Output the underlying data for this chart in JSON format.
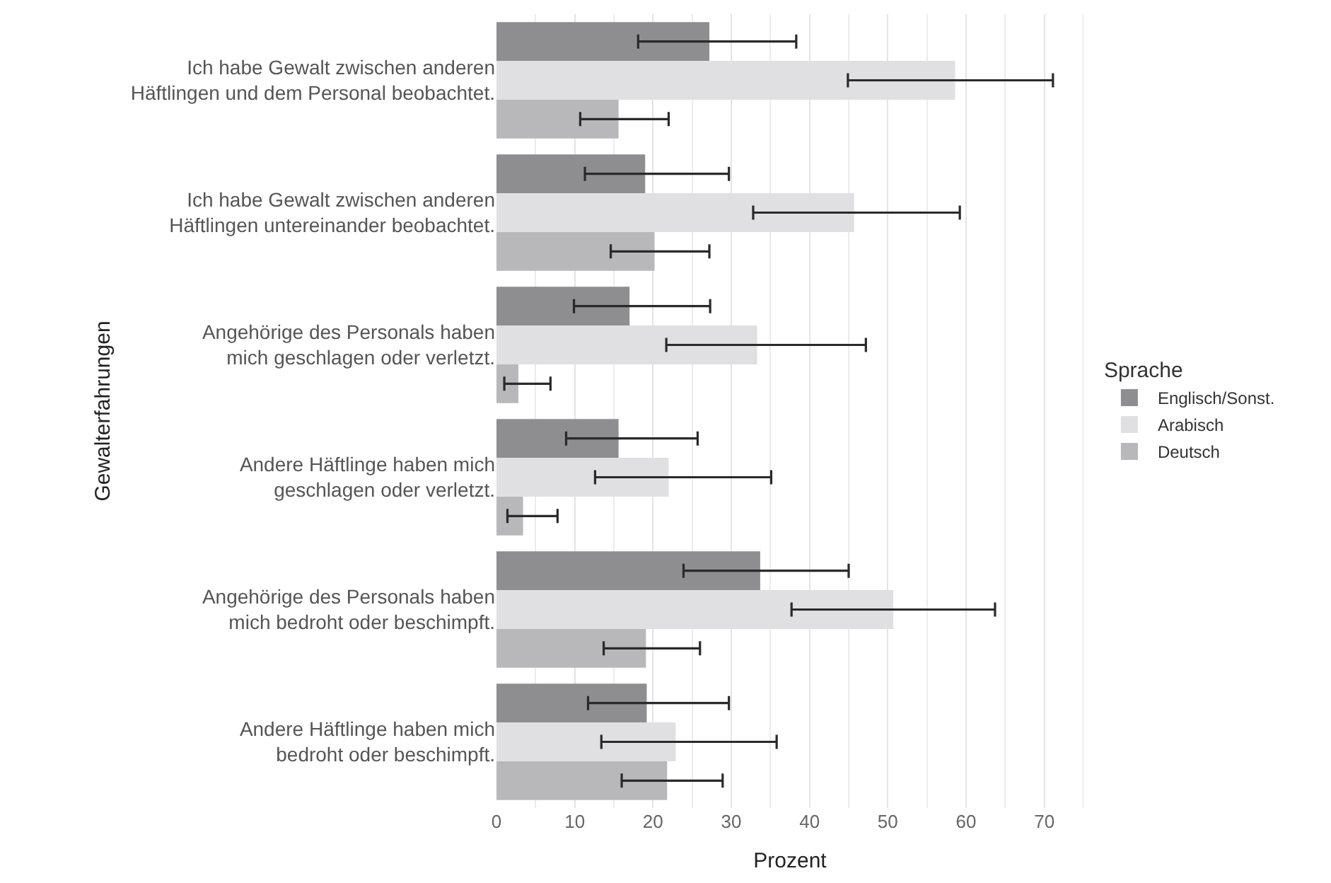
{
  "chart_data": {
    "type": "bar",
    "orientation": "horizontal",
    "xlabel": "Prozent",
    "ylabel": "Gewalterfahrungen",
    "legend_title": "Sprache",
    "legend": "right",
    "grid": "x",
    "categories": [
      "Ich habe Gewalt zwischen anderen\nHäftlingen und dem Personal beobachtet.",
      "Ich habe Gewalt zwischen anderen\nHäftlingen untereinander beobachtet.",
      "Angehörige des Personals haben\nmich geschlagen oder verletzt.",
      "Andere Häftlinge haben mich\ngeschlagen oder verletzt.",
      "Angehörige des Personals haben\nmich bedroht oder beschimpft.",
      "Andere Häftlinge haben mich\nbedroht oder beschimpft."
    ],
    "series": [
      {
        "name": "Englisch/Sonst.",
        "color": "#8e8e90",
        "values": [
          27.2,
          19.0,
          17.0,
          15.6,
          33.7,
          19.2
        ],
        "errors": [
          [
            18.1,
            38.3
          ],
          [
            11.3,
            29.7
          ],
          [
            9.9,
            27.3
          ],
          [
            8.9,
            25.7
          ],
          [
            23.9,
            45.0
          ],
          [
            11.7,
            29.7
          ]
        ]
      },
      {
        "name": "Arabisch",
        "color": "#e0e0e2",
        "values": [
          58.6,
          45.7,
          33.3,
          22.0,
          50.7,
          22.9
        ],
        "errors": [
          [
            44.9,
            71.1
          ],
          [
            32.8,
            59.2
          ],
          [
            21.7,
            47.2
          ],
          [
            12.6,
            35.1
          ],
          [
            37.7,
            63.7
          ],
          [
            13.4,
            35.8
          ]
        ]
      },
      {
        "name": "Deutsch",
        "color": "#b8b8ba",
        "values": [
          15.6,
          20.2,
          2.8,
          3.4,
          19.1,
          21.8
        ],
        "errors": [
          [
            10.7,
            22.0
          ],
          [
            14.6,
            27.2
          ],
          [
            1.0,
            6.9
          ],
          [
            1.4,
            7.8
          ],
          [
            13.7,
            26.0
          ],
          [
            16.0,
            28.9
          ]
        ]
      }
    ],
    "xlim": [
      0,
      75
    ],
    "xticks": [
      0,
      10,
      20,
      30,
      40,
      50,
      60,
      70
    ]
  }
}
